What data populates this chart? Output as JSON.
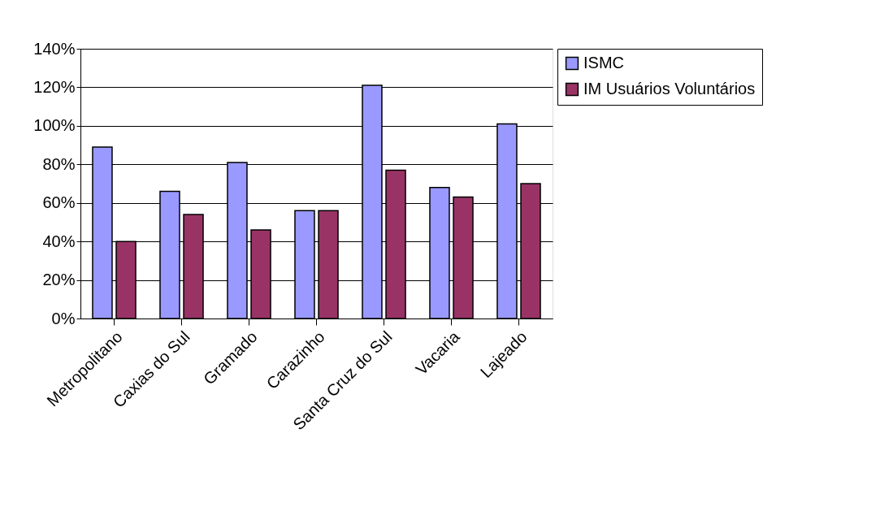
{
  "chart_data": {
    "type": "bar",
    "categories": [
      "Metropolitano",
      "Caxias do Sul",
      "Gramado",
      "Carazinho",
      "Santa Cruz do Sul",
      "Vacaria",
      "Lajeado"
    ],
    "series": [
      {
        "name": "ISMC",
        "color": "#9999ff",
        "values": [
          89,
          66,
          81,
          56,
          121,
          68,
          101
        ]
      },
      {
        "name": "IM Usuários Voluntários",
        "color": "#993366",
        "values": [
          40,
          54,
          46,
          56,
          77,
          63,
          70
        ]
      }
    ],
    "ylim": [
      0,
      140
    ],
    "yticks": [
      {
        "value": 0,
        "label": "0%"
      },
      {
        "value": 20,
        "label": "20%"
      },
      {
        "value": 40,
        "label": "40%"
      },
      {
        "value": 60,
        "label": "60%"
      },
      {
        "value": 80,
        "label": "80%"
      },
      {
        "value": 100,
        "label": "100%"
      },
      {
        "value": 120,
        "label": "120%"
      },
      {
        "value": 140,
        "label": "140%"
      }
    ],
    "grid": "y",
    "legend": "right"
  }
}
